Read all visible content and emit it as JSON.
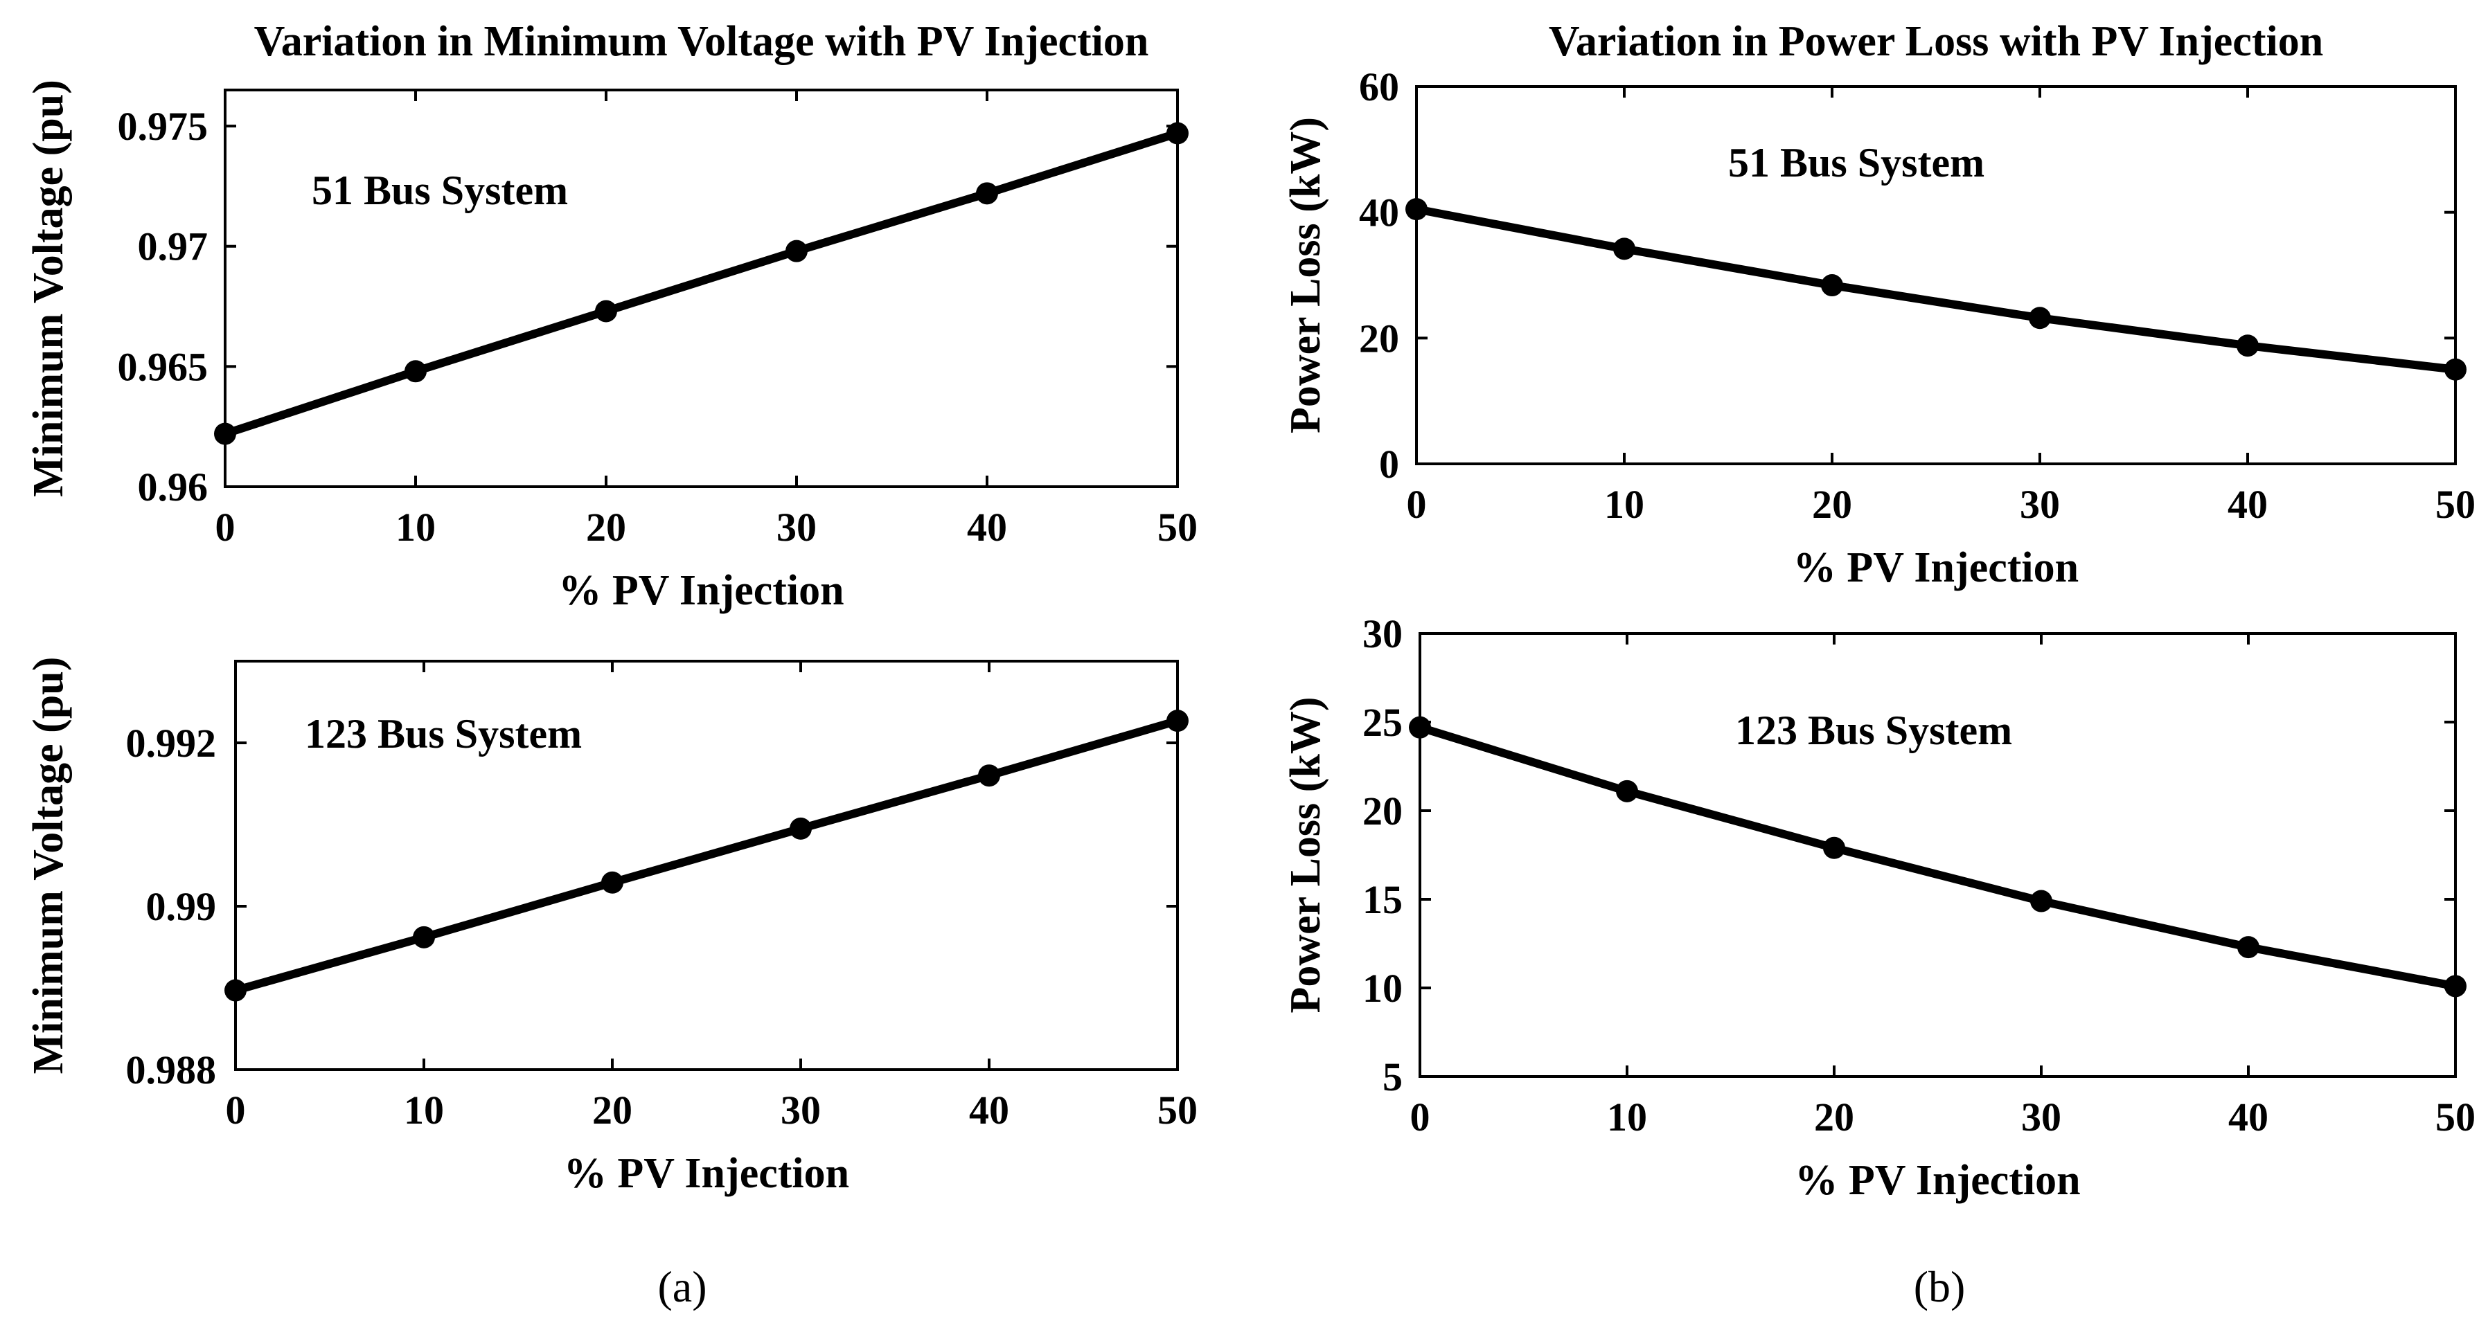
{
  "chart_data": [
    {
      "type": "line",
      "title": "Variation in Minimum Voltage with PV Injection",
      "xlabel": "% PV Injection",
      "ylabel": "Minimum Voltage (pu)",
      "annotation": "51 Bus System",
      "xlim": [
        0,
        50
      ],
      "ylim": [
        0.96,
        0.9765
      ],
      "xticks": [
        0,
        10,
        20,
        30,
        40,
        50
      ],
      "yticks": [
        0.96,
        0.965,
        0.97,
        0.975
      ],
      "yticklabels": [
        "0.96",
        "0.965",
        "0.97",
        "0.975"
      ],
      "grid": false,
      "series": [
        {
          "x": [
            0,
            10,
            20,
            30,
            40,
            50
          ],
          "y": [
            0.9622,
            0.9648,
            0.9673,
            0.9698,
            0.9722,
            0.9747
          ]
        }
      ]
    },
    {
      "type": "line",
      "title": "",
      "xlabel": "% PV Injection",
      "ylabel": "Minimum Voltage (pu)",
      "annotation": "123 Bus System",
      "xlim": [
        0,
        50
      ],
      "ylim": [
        0.988,
        0.993
      ],
      "xticks": [
        0,
        10,
        20,
        30,
        40,
        50
      ],
      "yticks": [
        0.988,
        0.99,
        0.992
      ],
      "yticklabels": [
        "0.988",
        "0.99",
        "0.992"
      ],
      "grid": false,
      "series": [
        {
          "x": [
            0,
            10,
            20,
            30,
            40,
            50
          ],
          "y": [
            0.98897,
            0.98962,
            0.99029,
            0.99095,
            0.9916,
            0.99227
          ]
        }
      ]
    },
    {
      "type": "line",
      "title": "Variation in Power Loss with PV Injection",
      "xlabel": "% PV Injection",
      "ylabel": "Power Loss (kW)",
      "annotation": "51 Bus System",
      "xlim": [
        0,
        50
      ],
      "ylim": [
        0,
        60
      ],
      "xticks": [
        0,
        10,
        20,
        30,
        40,
        50
      ],
      "yticks": [
        0,
        20,
        40,
        60
      ],
      "yticklabels": [
        "0",
        "20",
        "40",
        "60"
      ],
      "grid": false,
      "series": [
        {
          "x": [
            0,
            10,
            20,
            30,
            40,
            50
          ],
          "y": [
            40.5,
            34.2,
            28.4,
            23.2,
            18.8,
            15.0
          ]
        }
      ]
    },
    {
      "type": "line",
      "title": "",
      "xlabel": "% PV Injection",
      "ylabel": "Power Loss (kW)",
      "annotation": "123 Bus System",
      "xlim": [
        0,
        50
      ],
      "ylim": [
        5,
        30
      ],
      "xticks": [
        0,
        10,
        20,
        30,
        40,
        50
      ],
      "yticks": [
        5,
        10,
        15,
        20,
        25,
        30
      ],
      "yticklabels": [
        "5",
        "10",
        "15",
        "20",
        "25",
        "30"
      ],
      "grid": false,
      "series": [
        {
          "x": [
            0,
            10,
            20,
            30,
            40,
            50
          ],
          "y": [
            24.7,
            21.1,
            17.9,
            14.9,
            12.3,
            10.1
          ]
        }
      ]
    }
  ],
  "panel_labels": {
    "left": "(a)",
    "right": "(b)"
  }
}
